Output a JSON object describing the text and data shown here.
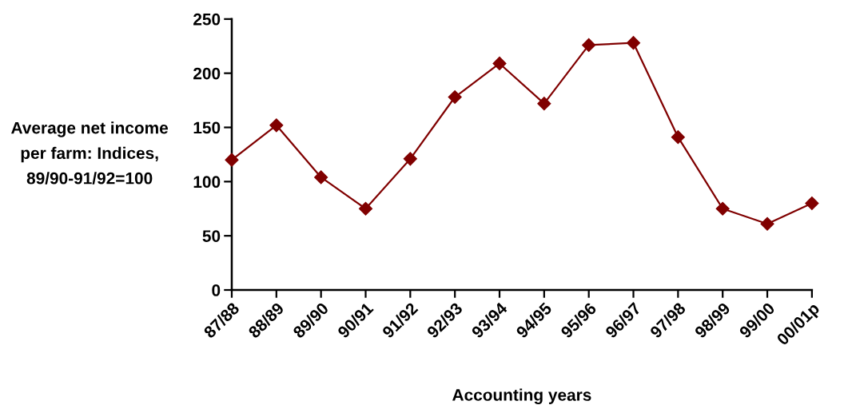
{
  "chart_data": {
    "type": "line",
    "ylabel": "Average net income\nper farm: Indices,\n89/90-91/92=100",
    "xlabel": "Accounting years",
    "categories": [
      "87/88",
      "88/89",
      "89/90",
      "90/91",
      "91/92",
      "92/93",
      "93/94",
      "94/95",
      "95/96",
      "96/97",
      "97/98",
      "98/99",
      "99/00",
      "00/01p"
    ],
    "series": [
      {
        "color": "#800000",
        "values": [
          120,
          152,
          104,
          75,
          121,
          178,
          209,
          172,
          226,
          228,
          141,
          75,
          61,
          80
        ]
      }
    ],
    "ylim": [
      0,
      250
    ],
    "yticks": [
      0,
      50,
      100,
      150,
      200,
      250
    ],
    "grid": false,
    "marker": "diamond",
    "line_style": "solid"
  }
}
